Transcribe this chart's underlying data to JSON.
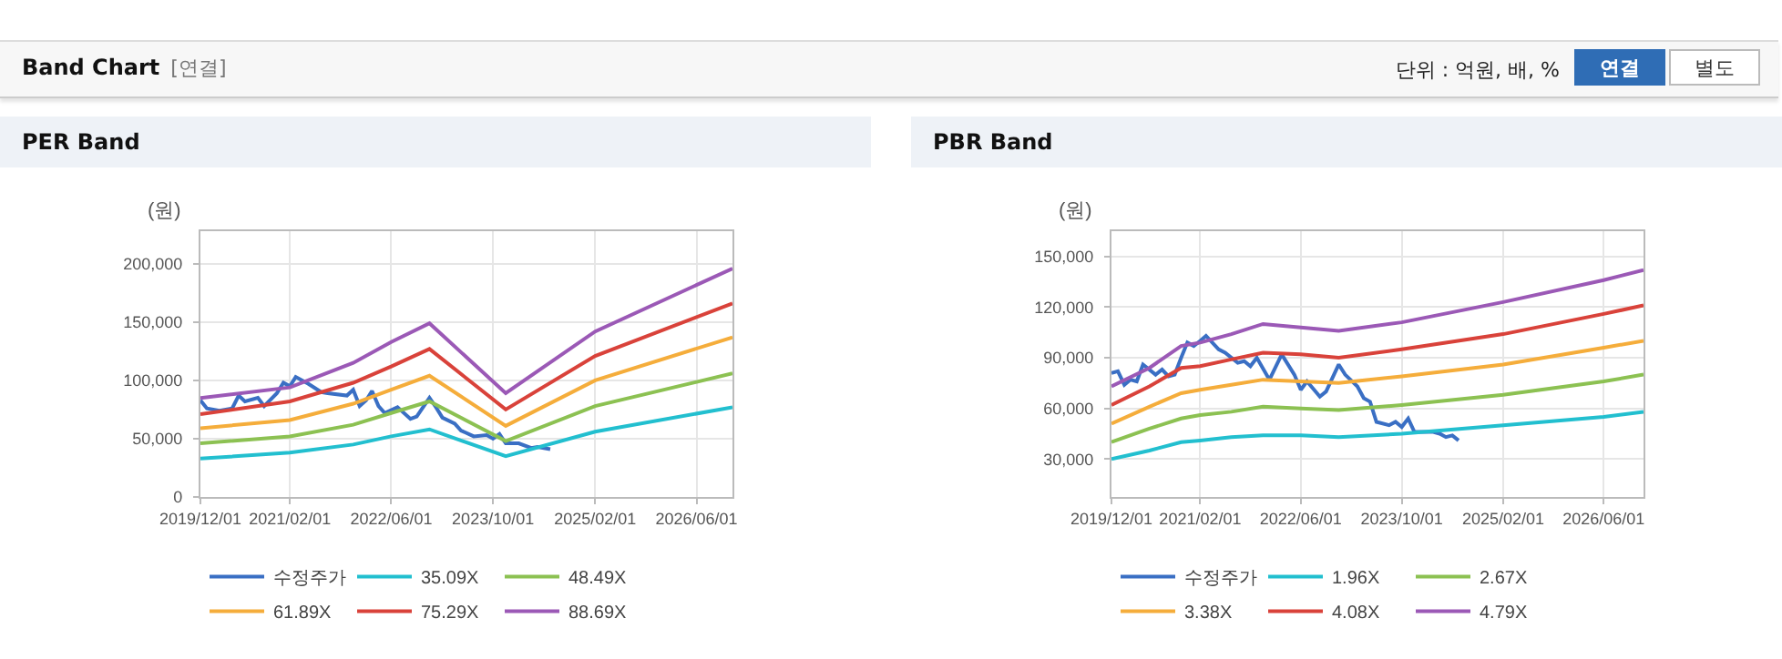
{
  "chart_data": [
    {
      "type": "other",
      "title": "Band Chart",
      "subtitle": "[연결]",
      "annotations": [
        "단위 : 억원, 배, %",
        "연결",
        "별도"
      ]
    },
    {
      "type": "line",
      "title": "PER Band",
      "ylabel": "(원)",
      "grid": true,
      "legend": "bottom",
      "xlim": [
        "2019-12-01",
        "2026-11-20"
      ],
      "xticks": [
        {
          "value": "2019-12-01",
          "label": "2019/12/01"
        },
        {
          "value": "2021-02-01",
          "label": "2021/02/01"
        },
        {
          "value": "2022-06-01",
          "label": "2022/06/01"
        },
        {
          "value": "2023-10-01",
          "label": "2023/10/01"
        },
        {
          "value": "2025-02-01",
          "label": "2025/02/01"
        },
        {
          "value": "2026-06-01",
          "label": "2026/06/01"
        }
      ],
      "ylim": [
        0,
        228000
      ],
      "yticks": [
        0,
        {
          "value": 50000,
          "label": "50,000"
        },
        {
          "value": 100000,
          "label": "100,000"
        },
        {
          "value": 150000,
          "label": "150,000"
        },
        {
          "value": 200000,
          "label": "200,000"
        }
      ],
      "x": [
        "2019-12",
        "2021-02",
        "2021-12",
        "2022-06",
        "2022-12",
        "2023-12",
        "2025-02",
        "2026-11-20"
      ],
      "series": [
        {
          "name": "수정주가",
          "color": "#3a6fc4",
          "x": [
            "2019-12",
            "2020-01",
            "2020-03",
            "2020-05",
            "2020-06",
            "2020-07",
            "2020-09",
            "2020-10",
            "2020-12",
            "2021-01",
            "2021-02",
            "2021-03",
            "2021-05",
            "2021-07",
            "2021-08",
            "2021-11",
            "2021-12",
            "2022-01",
            "2022-02",
            "2022-03",
            "2022-04",
            "2022-05",
            "2022-07",
            "2022-09",
            "2022-10",
            "2022-12",
            "2023-01",
            "2023-02",
            "2023-04",
            "2023-05",
            "2023-07",
            "2023-09",
            "2023-10",
            "2023-11",
            "2023-12",
            "2024-02",
            "2024-04",
            "2024-05",
            "2024-07"
          ],
          "values": [
            83000,
            76000,
            74000,
            76000,
            87000,
            82000,
            85000,
            78000,
            89000,
            98000,
            95000,
            103000,
            97000,
            90000,
            89000,
            87000,
            92000,
            78000,
            83000,
            91000,
            78000,
            72000,
            77000,
            67000,
            69000,
            85000,
            77000,
            68000,
            63000,
            57000,
            52000,
            53000,
            50000,
            54000,
            46000,
            46000,
            42000,
            43000,
            41000
          ]
        },
        {
          "name": "35.09X",
          "color": "#22bfcf",
          "values": [
            33000,
            38000,
            45000,
            52000,
            58000,
            35000,
            56000,
            77000
          ]
        },
        {
          "name": "48.49X",
          "color": "#8cc152",
          "values": [
            46000,
            52000,
            62000,
            72000,
            82000,
            48000,
            78000,
            106000
          ]
        },
        {
          "name": "61.89X",
          "color": "#f5ad3b",
          "values": [
            59000,
            66000,
            80000,
            92000,
            104000,
            61000,
            100000,
            137000
          ]
        },
        {
          "name": "75.29X",
          "color": "#d9423a",
          "values": [
            71000,
            82000,
            98000,
            112000,
            127000,
            75000,
            121000,
            166000
          ]
        },
        {
          "name": "88.69X",
          "color": "#9b59b6",
          "values": [
            85000,
            94000,
            115000,
            133000,
            149000,
            89000,
            142000,
            196000
          ]
        }
      ]
    },
    {
      "type": "line",
      "title": "PBR Band",
      "ylabel": "(원)",
      "grid": true,
      "legend": "bottom",
      "xlim": [
        "2019-12-01",
        "2026-12-10"
      ],
      "xticks": [
        {
          "value": "2019-12-01",
          "label": "2019/12/01"
        },
        {
          "value": "2021-02-01",
          "label": "2021/02/01"
        },
        {
          "value": "2022-06-01",
          "label": "2022/06/01"
        },
        {
          "value": "2023-10-01",
          "label": "2023/10/01"
        },
        {
          "value": "2025-02-01",
          "label": "2025/02/01"
        },
        {
          "value": "2026-06-01",
          "label": "2026/06/01"
        }
      ],
      "ylim": [
        7500,
        165000
      ],
      "yticks": [
        {
          "value": 30000,
          "label": "30,000"
        },
        {
          "value": 60000,
          "label": "60,000"
        },
        {
          "value": 90000,
          "label": "90,000"
        },
        {
          "value": 120000,
          "label": "120,000"
        },
        {
          "value": 150000,
          "label": "150,000"
        }
      ],
      "x": [
        "2019-12",
        "2020-06",
        "2020-11",
        "2021-02",
        "2021-07",
        "2021-12",
        "2022-06",
        "2022-12",
        "2023-10",
        "2025-02",
        "2026-06",
        "2026-12-10"
      ],
      "series": [
        {
          "name": "수정주가",
          "color": "#3a6fc4",
          "x": [
            "2019-12",
            "2020-01",
            "2020-02",
            "2020-03",
            "2020-04",
            "2020-05",
            "2020-07",
            "2020-08",
            "2020-09",
            "2020-10",
            "2020-11",
            "2020-12",
            "2021-01",
            "2021-02",
            "2021-03",
            "2021-05",
            "2021-06",
            "2021-08",
            "2021-09",
            "2021-10",
            "2021-11",
            "2022-01",
            "2022-03",
            "2022-05",
            "2022-06",
            "2022-07",
            "2022-09",
            "2022-10",
            "2022-12",
            "2023-01",
            "2023-03",
            "2023-04",
            "2023-05",
            "2023-06",
            "2023-08",
            "2023-09",
            "2023-10",
            "2023-11",
            "2023-12",
            "2024-03",
            "2024-04",
            "2024-05",
            "2024-06",
            "2024-07"
          ],
          "values": [
            81000,
            82000,
            74000,
            77000,
            76000,
            86000,
            80000,
            83000,
            79000,
            80000,
            90000,
            99000,
            97000,
            100000,
            103000,
            95000,
            93000,
            87000,
            88000,
            85000,
            90000,
            77000,
            92000,
            80000,
            71000,
            76000,
            67000,
            70000,
            86000,
            80000,
            73000,
            66000,
            64000,
            52000,
            50000,
            52000,
            49000,
            54000,
            46000,
            46000,
            45000,
            43000,
            44000,
            41000
          ]
        },
        {
          "name": "1.96X",
          "color": "#22bfcf",
          "values": [
            30000,
            35000,
            40000,
            41000,
            43000,
            44000,
            44000,
            43000,
            45000,
            50000,
            55000,
            58000
          ]
        },
        {
          "name": "2.67X",
          "color": "#8cc152",
          "values": [
            40000,
            48000,
            54000,
            56000,
            58000,
            61000,
            60000,
            59000,
            62000,
            68000,
            76000,
            80000
          ]
        },
        {
          "name": "3.38X",
          "color": "#f5ad3b",
          "values": [
            51000,
            61000,
            69000,
            71000,
            74000,
            77000,
            76000,
            75000,
            79000,
            86000,
            96000,
            100000
          ]
        },
        {
          "name": "4.08X",
          "color": "#d9423a",
          "values": [
            62000,
            73000,
            84000,
            85000,
            89000,
            93000,
            92000,
            90000,
            95000,
            104000,
            116000,
            121000
          ]
        },
        {
          "name": "4.79X",
          "color": "#9b59b6",
          "values": [
            73000,
            84000,
            97000,
            99000,
            104000,
            110000,
            108000,
            106000,
            111000,
            123000,
            136000,
            142000
          ]
        }
      ]
    }
  ]
}
